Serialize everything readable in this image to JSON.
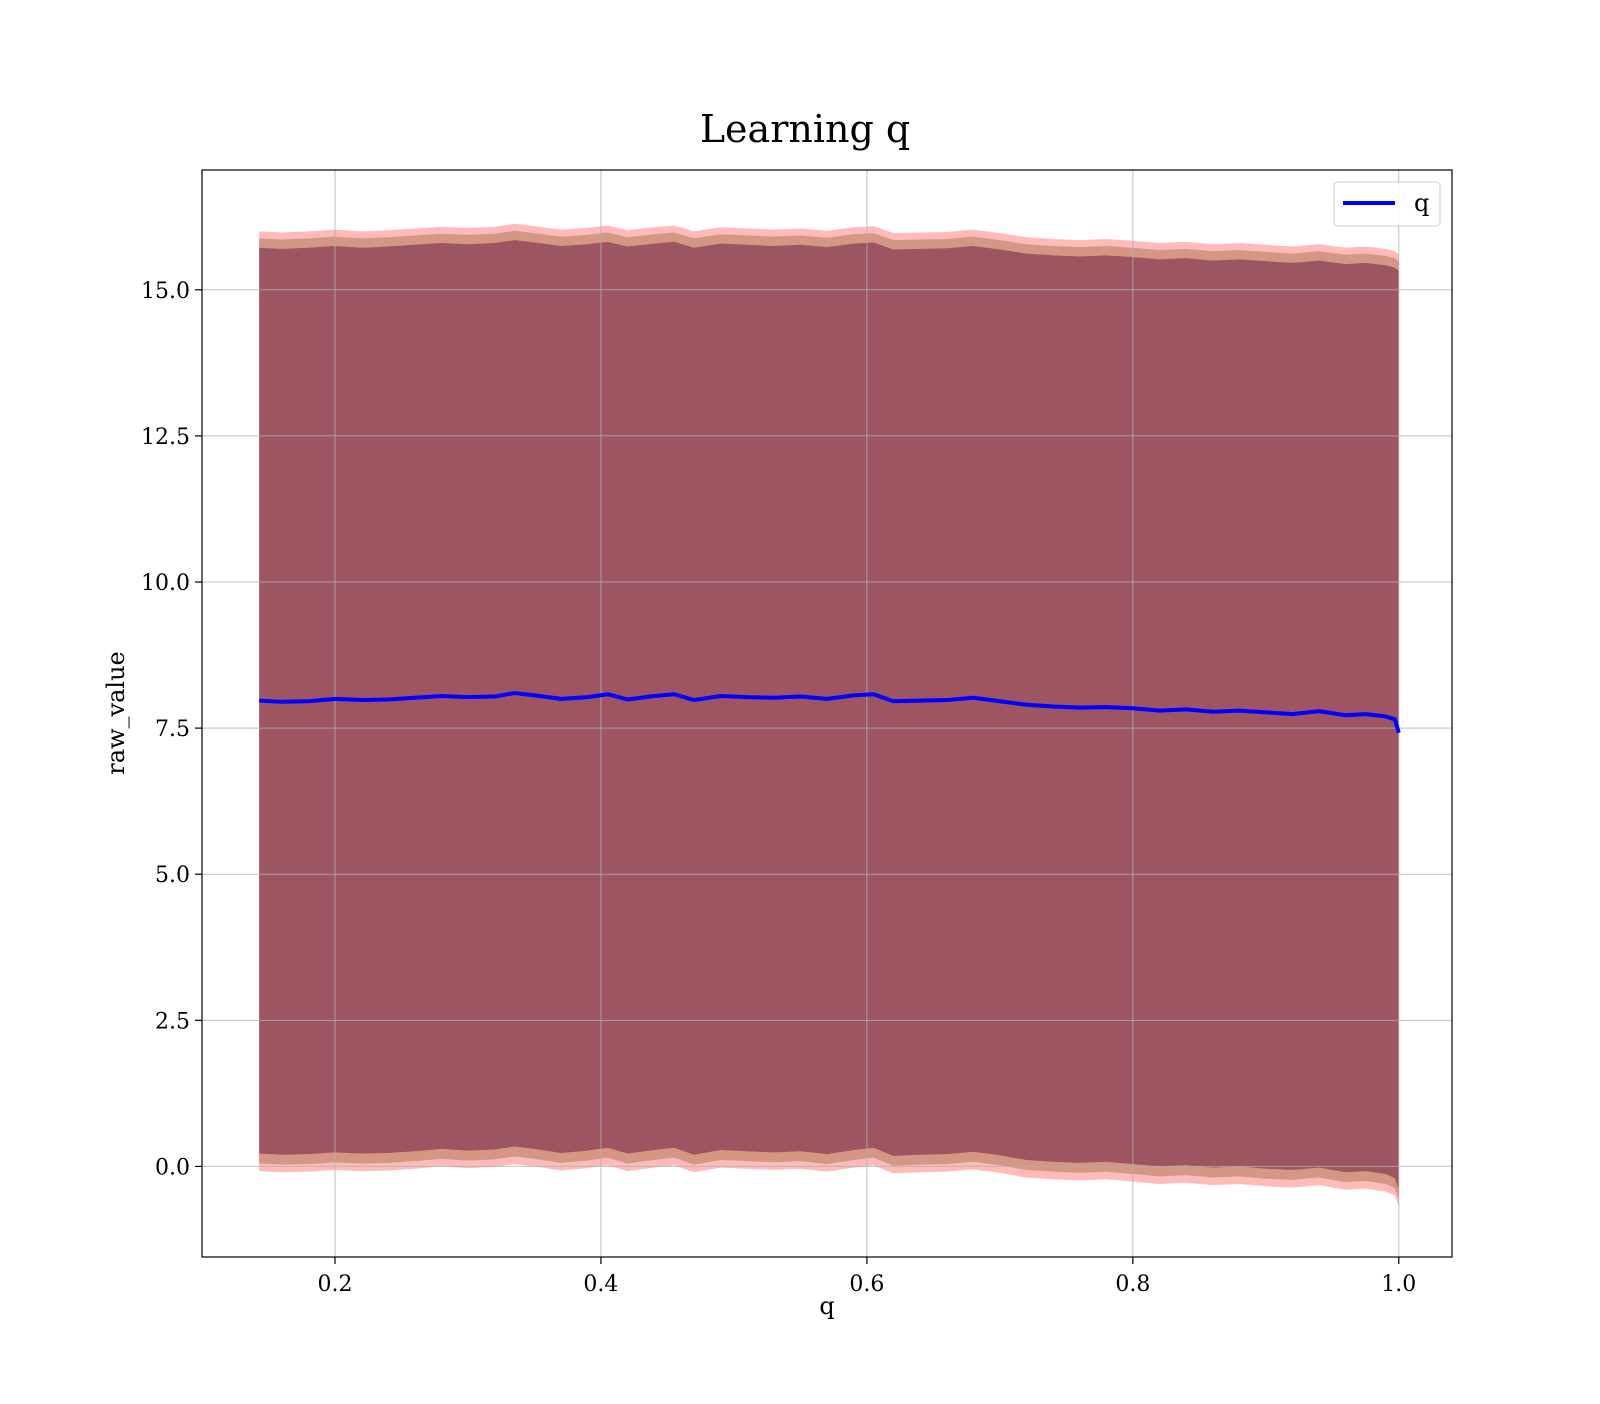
{
  "chart_data": {
    "type": "line",
    "title": "Learning q",
    "xlabel": "q",
    "ylabel": "raw_value",
    "xlim": [
      0.1,
      1.04
    ],
    "ylim": [
      -1.55,
      17.05
    ],
    "xticks": [
      0.2,
      0.4,
      0.6,
      0.8,
      1.0
    ],
    "xtick_labels": [
      "0.2",
      "0.4",
      "0.6",
      "0.8",
      "1.0"
    ],
    "yticks": [
      0.0,
      2.5,
      5.0,
      7.5,
      10.0,
      12.5,
      15.0
    ],
    "ytick_labels": [
      "0.0",
      "2.5",
      "5.0",
      "7.5",
      "10.0",
      "12.5",
      "15.0"
    ],
    "grid": true,
    "legend": {
      "placement": "top-right",
      "entries": [
        {
          "name": "q",
          "color": "#0000ff"
        }
      ]
    },
    "x": [
      0.143,
      0.16,
      0.18,
      0.2,
      0.22,
      0.24,
      0.26,
      0.28,
      0.3,
      0.32,
      0.335,
      0.35,
      0.37,
      0.39,
      0.405,
      0.42,
      0.44,
      0.455,
      0.47,
      0.49,
      0.51,
      0.53,
      0.55,
      0.57,
      0.59,
      0.605,
      0.62,
      0.64,
      0.66,
      0.68,
      0.7,
      0.72,
      0.74,
      0.76,
      0.78,
      0.8,
      0.82,
      0.84,
      0.86,
      0.88,
      0.9,
      0.92,
      0.94,
      0.96,
      0.975,
      0.99,
      0.997,
      1.0
    ],
    "series": [
      {
        "name": "q",
        "color": "#0000ff",
        "values": [
          7.97,
          7.95,
          7.96,
          8.0,
          7.98,
          7.99,
          8.02,
          8.05,
          8.03,
          8.04,
          8.1,
          8.06,
          8.0,
          8.03,
          8.08,
          7.99,
          8.05,
          8.08,
          7.98,
          8.05,
          8.03,
          8.02,
          8.04,
          8.0,
          8.06,
          8.08,
          7.96,
          7.97,
          7.98,
          8.02,
          7.96,
          7.9,
          7.87,
          7.85,
          7.86,
          7.84,
          7.8,
          7.82,
          7.78,
          7.8,
          7.77,
          7.74,
          7.79,
          7.72,
          7.74,
          7.7,
          7.65,
          7.42
        ]
      }
    ],
    "bands": [
      {
        "color": "#ff6666",
        "opacity": 0.45,
        "upper": [
          16.0,
          15.98,
          16.0,
          16.03,
          16.0,
          16.02,
          16.05,
          16.08,
          16.06,
          16.08,
          16.13,
          16.09,
          16.03,
          16.06,
          16.1,
          16.02,
          16.07,
          16.1,
          16.0,
          16.07,
          16.05,
          16.03,
          16.05,
          16.01,
          16.07,
          16.09,
          15.97,
          15.98,
          15.99,
          16.03,
          15.97,
          15.9,
          15.87,
          15.85,
          15.87,
          15.84,
          15.8,
          15.82,
          15.78,
          15.8,
          15.77,
          15.74,
          15.78,
          15.72,
          15.74,
          15.7,
          15.66,
          15.6
        ],
        "lower": [
          -0.08,
          -0.1,
          -0.09,
          -0.06,
          -0.08,
          -0.07,
          -0.04,
          0.0,
          -0.03,
          -0.01,
          0.04,
          0.0,
          -0.07,
          -0.03,
          0.02,
          -0.08,
          -0.02,
          0.02,
          -0.1,
          -0.02,
          -0.04,
          -0.06,
          -0.04,
          -0.09,
          -0.02,
          0.02,
          -0.12,
          -0.1,
          -0.09,
          -0.05,
          -0.11,
          -0.19,
          -0.22,
          -0.24,
          -0.22,
          -0.26,
          -0.3,
          -0.28,
          -0.32,
          -0.3,
          -0.34,
          -0.36,
          -0.32,
          -0.4,
          -0.38,
          -0.43,
          -0.5,
          -0.7
        ]
      },
      {
        "color": "#b07a55",
        "opacity": 0.55,
        "upper": [
          15.88,
          15.86,
          15.88,
          15.91,
          15.88,
          15.9,
          15.93,
          15.96,
          15.94,
          15.96,
          16.01,
          15.97,
          15.91,
          15.94,
          15.98,
          15.9,
          15.95,
          15.98,
          15.88,
          15.95,
          15.93,
          15.91,
          15.93,
          15.89,
          15.95,
          15.97,
          15.85,
          15.86,
          15.87,
          15.91,
          15.85,
          15.78,
          15.75,
          15.73,
          15.75,
          15.72,
          15.68,
          15.7,
          15.66,
          15.68,
          15.65,
          15.62,
          15.66,
          15.6,
          15.62,
          15.58,
          15.54,
          15.48
        ],
        "lower": [
          0.05,
          0.03,
          0.04,
          0.07,
          0.05,
          0.06,
          0.09,
          0.13,
          0.1,
          0.12,
          0.17,
          0.13,
          0.06,
          0.1,
          0.15,
          0.05,
          0.11,
          0.15,
          0.03,
          0.11,
          0.09,
          0.07,
          0.09,
          0.04,
          0.11,
          0.15,
          0.01,
          0.03,
          0.04,
          0.08,
          0.02,
          -0.06,
          -0.09,
          -0.11,
          -0.09,
          -0.13,
          -0.17,
          -0.15,
          -0.19,
          -0.17,
          -0.21,
          -0.23,
          -0.19,
          -0.27,
          -0.25,
          -0.3,
          -0.37,
          -0.57
        ]
      },
      {
        "color": "#8a3f55",
        "opacity": 0.75,
        "upper": [
          15.72,
          15.7,
          15.72,
          15.75,
          15.72,
          15.74,
          15.77,
          15.8,
          15.78,
          15.8,
          15.85,
          15.81,
          15.75,
          15.78,
          15.82,
          15.74,
          15.79,
          15.82,
          15.72,
          15.79,
          15.77,
          15.75,
          15.77,
          15.73,
          15.79,
          15.81,
          15.69,
          15.7,
          15.71,
          15.75,
          15.69,
          15.62,
          15.59,
          15.57,
          15.59,
          15.56,
          15.52,
          15.54,
          15.5,
          15.52,
          15.49,
          15.46,
          15.5,
          15.44,
          15.46,
          15.42,
          15.38,
          15.32
        ],
        "lower": [
          0.22,
          0.2,
          0.21,
          0.24,
          0.22,
          0.23,
          0.26,
          0.3,
          0.27,
          0.29,
          0.34,
          0.3,
          0.23,
          0.27,
          0.32,
          0.22,
          0.28,
          0.32,
          0.2,
          0.28,
          0.26,
          0.24,
          0.26,
          0.21,
          0.28,
          0.32,
          0.18,
          0.2,
          0.21,
          0.25,
          0.19,
          0.11,
          0.08,
          0.06,
          0.08,
          0.04,
          0.0,
          0.02,
          -0.02,
          0.0,
          -0.04,
          -0.06,
          -0.02,
          -0.1,
          -0.08,
          -0.13,
          -0.2,
          -0.4
        ]
      }
    ]
  }
}
